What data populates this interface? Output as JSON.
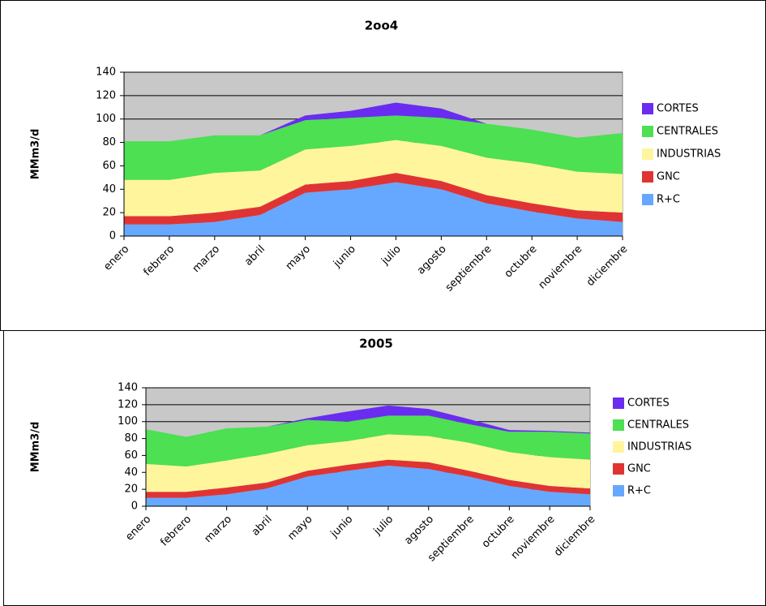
{
  "chart_data": [
    {
      "type": "area",
      "stacked": true,
      "title": "2oo4",
      "y_label": "MMm3/d",
      "categories": [
        "enero",
        "febrero",
        "marzo",
        "abril",
        "mayo",
        "junio",
        "julio",
        "agosto",
        "septiembre",
        "octubre",
        "noviembre",
        "diciembre"
      ],
      "ylim": [
        0,
        140
      ],
      "yticks": [
        0,
        20,
        40,
        60,
        80,
        100,
        120,
        140
      ],
      "grid": true,
      "legend": "right",
      "series": [
        {
          "name": "R+C",
          "color": "#66a8ff",
          "values": [
            10,
            10,
            12,
            18,
            37,
            40,
            46,
            40,
            28,
            21,
            15,
            12
          ]
        },
        {
          "name": "GNC",
          "color": "#e03434",
          "values": [
            7,
            7,
            8,
            7,
            7,
            7,
            8,
            7,
            7,
            7,
            7,
            8
          ]
        },
        {
          "name": "INDUSTRIAS",
          "color": "#fff59c",
          "values": [
            31,
            31,
            34,
            31,
            30,
            30,
            28,
            30,
            32,
            34,
            33,
            33
          ]
        },
        {
          "name": "CENTRALES",
          "color": "#4ce052",
          "values": [
            33,
            33,
            32,
            30,
            25,
            24,
            21,
            24,
            29,
            29,
            29,
            35
          ]
        },
        {
          "name": "CORTES",
          "color": "#6a2cf0",
          "values": [
            0,
            0,
            0,
            0,
            4,
            6,
            11,
            8,
            0,
            0,
            0,
            0
          ]
        }
      ]
    },
    {
      "type": "area",
      "stacked": true,
      "title": "2005",
      "y_label": "MMm3/d",
      "categories": [
        "enero",
        "febrero",
        "marzo",
        "abril",
        "mayo",
        "junio",
        "julio",
        "agosto",
        "septiembre",
        "octubre",
        "noviembre",
        "diciembre"
      ],
      "ylim": [
        0,
        140
      ],
      "yticks": [
        0,
        20,
        40,
        60,
        80,
        100,
        120,
        140
      ],
      "grid": true,
      "legend": "right",
      "series": [
        {
          "name": "R+C",
          "color": "#66a8ff",
          "values": [
            10,
            10,
            14,
            21,
            35,
            42,
            48,
            44,
            35,
            24,
            17,
            14
          ]
        },
        {
          "name": "GNC",
          "color": "#e03434",
          "values": [
            7,
            7,
            8,
            7,
            7,
            7,
            7,
            8,
            7,
            7,
            7,
            7
          ]
        },
        {
          "name": "INDUSTRIAS",
          "color": "#fff59c",
          "values": [
            33,
            30,
            32,
            34,
            30,
            28,
            30,
            31,
            33,
            33,
            34,
            34
          ]
        },
        {
          "name": "CENTRALES",
          "color": "#4ce052",
          "values": [
            41,
            35,
            38,
            32,
            30,
            23,
            22,
            24,
            22,
            24,
            30,
            31
          ]
        },
        {
          "name": "CORTES",
          "color": "#6a2cf0",
          "values": [
            0,
            0,
            0,
            0,
            2,
            12,
            12,
            8,
            6,
            2,
            1,
            1
          ]
        }
      ]
    }
  ]
}
